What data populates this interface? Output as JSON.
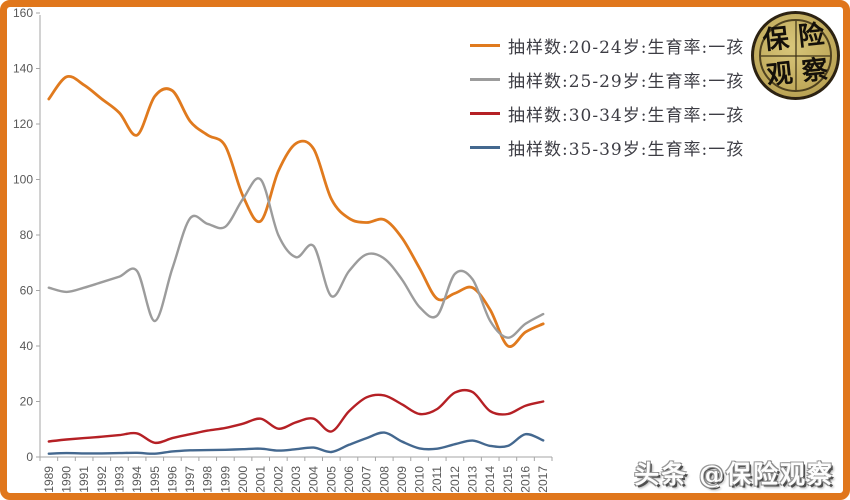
{
  "frame": {
    "border_color": "#E0771C",
    "background": "#FFFFFF"
  },
  "axis": {
    "label_color": "#595959",
    "line_color": "#A6A6A6"
  },
  "chart_data": {
    "type": "line",
    "title": "",
    "xlabel": "",
    "ylabel": "",
    "grid": false,
    "legend_position": "top-right",
    "ylim": [
      0,
      160
    ],
    "yticks": [
      0,
      20,
      40,
      60,
      80,
      100,
      120,
      140,
      160
    ],
    "x": [
      1989,
      1990,
      1991,
      1992,
      1993,
      1994,
      1995,
      1996,
      1997,
      1998,
      1999,
      2000,
      2001,
      2002,
      2003,
      2004,
      2005,
      2006,
      2007,
      2008,
      2009,
      2010,
      2011,
      2012,
      2013,
      2014,
      2015,
      2016,
      2017
    ],
    "series": [
      {
        "name": "抽样数:20-24岁:生育率:一孩",
        "color": "#E07A1E",
        "values": [
          129,
          137,
          134,
          129,
          124,
          116,
          130,
          132,
          121,
          116,
          112,
          94,
          85,
          103,
          113,
          111,
          93,
          86,
          84.5,
          85.5,
          79,
          68,
          57,
          59,
          61,
          53,
          40,
          45,
          48
        ]
      },
      {
        "name": "抽样数:25-29岁:生育率:一孩",
        "color": "#9C9C9C",
        "values": [
          61,
          59.5,
          61,
          63,
          65,
          67,
          49,
          68,
          86,
          84,
          83,
          93,
          100,
          80,
          72,
          76,
          58,
          67,
          73,
          71.5,
          64,
          54,
          51,
          66,
          64,
          49,
          43,
          48,
          51.5
        ]
      },
      {
        "name": "抽样数:30-34岁:生育率:一孩",
        "color": "#B52025",
        "values": [
          5.6,
          6.3,
          6.8,
          7.3,
          7.9,
          8.5,
          5.1,
          6.8,
          8.2,
          9.5,
          10.5,
          12,
          13.8,
          10.2,
          12.5,
          13.8,
          9.2,
          16.5,
          21.5,
          22.2,
          19,
          15.5,
          17.3,
          23.2,
          23.4,
          16.5,
          15.5,
          18.5,
          20
        ]
      },
      {
        "name": "抽样数:35-39岁:生育率:一孩",
        "color": "#44688F",
        "values": [
          1.2,
          1.4,
          1.3,
          1.3,
          1.4,
          1.5,
          1.2,
          2,
          2.4,
          2.5,
          2.6,
          2.8,
          3,
          2.3,
          2.8,
          3.4,
          1.8,
          4.4,
          6.8,
          8.8,
          5.6,
          3.1,
          3,
          4.6,
          5.9,
          4,
          4,
          8.2,
          6
        ]
      }
    ]
  },
  "branding": {
    "seal_chars": [
      "保",
      "险",
      "观",
      "察"
    ],
    "seal_bg": "#C3AD5F",
    "watermark": "头条 @保险观察"
  }
}
